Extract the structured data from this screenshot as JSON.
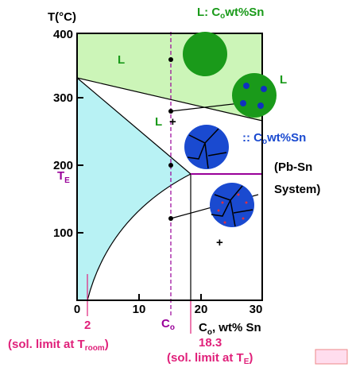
{
  "axis": {
    "y_title": "T(°C)",
    "yticks": [
      "100",
      "200",
      "300",
      "400"
    ],
    "xticks": [
      "0",
      "10",
      "20",
      "30"
    ],
    "x_title": {
      "main": "C",
      "sub": "o",
      "rest": ", wt% Sn"
    }
  },
  "labels": {
    "liquid_top": {
      "main": "L: C",
      "sub": "o",
      "rest": "wt%Sn"
    },
    "L_region": "L",
    "L_circle": "L",
    "L_plus": "L",
    "plus1": "+",
    "plus2": "+",
    "alpha_comp": {
      "main": ":: C",
      "sub": "o",
      "rest": "wt%Sn"
    },
    "system_1": "(Pb-Sn",
    "system_2": "System)",
    "TE": {
      "main": "T",
      "sub": "E"
    },
    "co_mark": {
      "main": "C",
      "sub": "o"
    },
    "limit_room_value": "2",
    "limit_room": {
      "main": "(sol. limit at T",
      "sub": "room",
      "rest": ")"
    },
    "limit_TE_value": "18.3",
    "limit_TE": {
      "main": "(sol. limit at T",
      "sub": "E",
      "rest": ")"
    }
  }
}
